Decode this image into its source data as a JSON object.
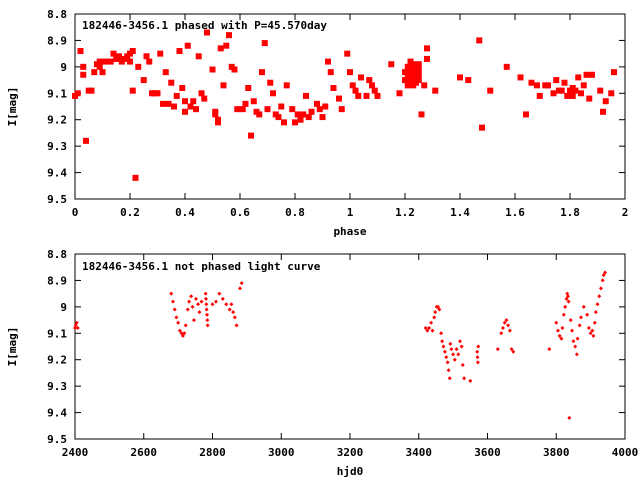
{
  "chart_data": [
    {
      "type": "scatter",
      "title": "182446-3456.1 phased with P=45.570day",
      "xlabel": "phase",
      "ylabel": "I[mag]",
      "xlim": [
        0,
        2
      ],
      "ylim": [
        9.5,
        8.8
      ],
      "y_inverted": true,
      "grid": false,
      "marker_color": "#ff0000",
      "xticks": [
        "0",
        "0.2",
        "0.4",
        "0.6",
        "0.8",
        "1",
        "1.2",
        "1.4",
        "1.6",
        "1.8",
        "2"
      ],
      "yticks": [
        "8.8",
        "8.9",
        "9",
        "9.1",
        "9.2",
        "9.3",
        "9.4",
        "9.5"
      ],
      "points": [
        [
          0.0,
          9.11
        ],
        [
          0.01,
          9.1
        ],
        [
          0.02,
          8.94
        ],
        [
          0.03,
          9.0
        ],
        [
          0.03,
          9.03
        ],
        [
          0.04,
          9.28
        ],
        [
          0.05,
          9.09
        ],
        [
          0.06,
          9.09
        ],
        [
          0.07,
          9.02
        ],
        [
          0.08,
          8.99
        ],
        [
          0.09,
          9.0
        ],
        [
          0.09,
          8.98
        ],
        [
          0.1,
          9.02
        ],
        [
          0.11,
          8.98
        ],
        [
          0.13,
          8.98
        ],
        [
          0.14,
          8.95
        ],
        [
          0.15,
          8.97
        ],
        [
          0.16,
          8.96
        ],
        [
          0.17,
          8.98
        ],
        [
          0.18,
          8.97
        ],
        [
          0.19,
          8.96
        ],
        [
          0.2,
          8.95
        ],
        [
          0.2,
          8.98
        ],
        [
          0.21,
          8.94
        ],
        [
          0.21,
          9.09
        ],
        [
          0.22,
          9.42
        ],
        [
          0.23,
          9.0
        ],
        [
          0.25,
          9.05
        ],
        [
          0.26,
          8.96
        ],
        [
          0.27,
          8.98
        ],
        [
          0.28,
          9.1
        ],
        [
          0.29,
          9.1
        ],
        [
          0.3,
          9.1
        ],
        [
          0.31,
          8.95
        ],
        [
          0.32,
          9.14
        ],
        [
          0.33,
          9.02
        ],
        [
          0.34,
          9.14
        ],
        [
          0.35,
          9.06
        ],
        [
          0.36,
          9.15
        ],
        [
          0.37,
          9.11
        ],
        [
          0.38,
          8.94
        ],
        [
          0.39,
          9.08
        ],
        [
          0.4,
          9.17
        ],
        [
          0.4,
          9.13
        ],
        [
          0.41,
          8.92
        ],
        [
          0.42,
          9.15
        ],
        [
          0.43,
          9.13
        ],
        [
          0.44,
          9.16
        ],
        [
          0.45,
          8.96
        ],
        [
          0.46,
          9.1
        ],
        [
          0.47,
          9.12
        ],
        [
          0.48,
          8.87
        ],
        [
          0.5,
          9.01
        ],
        [
          0.51,
          9.17
        ],
        [
          0.51,
          9.18
        ],
        [
          0.52,
          9.2
        ],
        [
          0.52,
          9.21
        ],
        [
          0.53,
          8.93
        ],
        [
          0.54,
          9.07
        ],
        [
          0.55,
          8.92
        ],
        [
          0.56,
          8.88
        ],
        [
          0.57,
          9.0
        ],
        [
          0.58,
          9.01
        ],
        [
          0.59,
          9.16
        ],
        [
          0.61,
          9.16
        ],
        [
          0.62,
          9.14
        ],
        [
          0.63,
          9.08
        ],
        [
          0.64,
          9.26
        ],
        [
          0.65,
          9.13
        ],
        [
          0.66,
          9.17
        ],
        [
          0.67,
          9.18
        ],
        [
          0.68,
          9.02
        ],
        [
          0.69,
          8.91
        ],
        [
          0.7,
          9.16
        ],
        [
          0.71,
          9.06
        ],
        [
          0.72,
          9.1
        ],
        [
          0.73,
          9.18
        ],
        [
          0.74,
          9.19
        ],
        [
          0.75,
          9.15
        ],
        [
          0.76,
          9.21
        ],
        [
          0.77,
          9.07
        ],
        [
          0.79,
          9.16
        ],
        [
          0.8,
          9.21
        ],
        [
          0.81,
          9.18
        ],
        [
          0.82,
          9.2
        ],
        [
          0.83,
          9.18
        ],
        [
          0.84,
          9.11
        ],
        [
          0.85,
          9.19
        ],
        [
          0.86,
          9.17
        ],
        [
          0.88,
          9.14
        ],
        [
          0.89,
          9.16
        ],
        [
          0.9,
          9.19
        ],
        [
          0.91,
          9.15
        ],
        [
          0.92,
          8.98
        ],
        [
          0.93,
          9.02
        ],
        [
          0.94,
          9.08
        ],
        [
          0.96,
          9.12
        ],
        [
          0.97,
          9.16
        ],
        [
          0.99,
          8.95
        ],
        [
          1.0,
          9.02
        ],
        [
          1.01,
          9.07
        ],
        [
          1.02,
          9.09
        ],
        [
          1.03,
          9.11
        ],
        [
          1.04,
          9.04
        ],
        [
          1.06,
          9.11
        ],
        [
          1.07,
          9.05
        ],
        [
          1.08,
          9.07
        ],
        [
          1.09,
          9.09
        ],
        [
          1.1,
          9.11
        ],
        [
          1.15,
          8.99
        ],
        [
          1.18,
          9.1
        ],
        [
          1.2,
          9.02
        ],
        [
          1.2,
          9.05
        ],
        [
          1.21,
          9.0
        ],
        [
          1.21,
          9.03
        ],
        [
          1.21,
          9.05
        ],
        [
          1.21,
          9.07
        ],
        [
          1.22,
          8.98
        ],
        [
          1.22,
          9.0
        ],
        [
          1.22,
          9.02
        ],
        [
          1.22,
          9.04
        ],
        [
          1.22,
          9.06
        ],
        [
          1.23,
          8.99
        ],
        [
          1.23,
          9.01
        ],
        [
          1.23,
          9.03
        ],
        [
          1.23,
          9.05
        ],
        [
          1.23,
          9.07
        ],
        [
          1.24,
          9.0
        ],
        [
          1.24,
          9.02
        ],
        [
          1.24,
          9.04
        ],
        [
          1.24,
          9.06
        ],
        [
          1.25,
          8.99
        ],
        [
          1.25,
          9.01
        ],
        [
          1.25,
          9.03
        ],
        [
          1.25,
          9.05
        ],
        [
          1.26,
          9.18
        ],
        [
          1.27,
          9.07
        ],
        [
          1.28,
          8.97
        ],
        [
          1.28,
          8.93
        ],
        [
          1.31,
          9.09
        ],
        [
          1.4,
          9.04
        ],
        [
          1.43,
          9.05
        ],
        [
          1.47,
          8.9
        ],
        [
          1.48,
          9.23
        ],
        [
          1.51,
          9.09
        ],
        [
          1.57,
          9.0
        ],
        [
          1.62,
          9.04
        ],
        [
          1.64,
          9.18
        ],
        [
          1.66,
          9.06
        ],
        [
          1.68,
          9.07
        ],
        [
          1.69,
          9.11
        ],
        [
          1.71,
          9.07
        ],
        [
          1.72,
          9.07
        ],
        [
          1.74,
          9.1
        ],
        [
          1.75,
          9.05
        ],
        [
          1.76,
          9.09
        ],
        [
          1.77,
          9.09
        ],
        [
          1.78,
          9.06
        ],
        [
          1.79,
          9.11
        ],
        [
          1.8,
          9.09
        ],
        [
          1.81,
          9.08
        ],
        [
          1.81,
          9.11
        ],
        [
          1.82,
          9.09
        ],
        [
          1.83,
          9.04
        ],
        [
          1.84,
          9.1
        ],
        [
          1.85,
          9.07
        ],
        [
          1.86,
          9.03
        ],
        [
          1.87,
          9.12
        ],
        [
          1.88,
          9.03
        ],
        [
          1.91,
          9.09
        ],
        [
          1.92,
          9.17
        ],
        [
          1.93,
          9.13
        ],
        [
          1.95,
          9.1
        ],
        [
          1.96,
          9.02
        ]
      ]
    },
    {
      "type": "scatter",
      "title": "182446-3456.1 not phased light curve",
      "xlabel": "hjd0",
      "ylabel": "I[mag]",
      "xlim": [
        2400,
        4000
      ],
      "ylim": [
        9.5,
        8.8
      ],
      "y_inverted": true,
      "grid": false,
      "marker_color": "#ff0000",
      "xticks": [
        "2400",
        "2600",
        "2800",
        "3000",
        "3200",
        "3400",
        "3600",
        "3800",
        "4000"
      ],
      "yticks": [
        "8.8",
        "8.9",
        "9",
        "9.1",
        "9.2",
        "9.3",
        "9.4",
        "9.5"
      ],
      "points": [
        [
          2400,
          9.08
        ],
        [
          2402,
          9.07
        ],
        [
          2405,
          9.06
        ],
        [
          2408,
          9.08
        ],
        [
          2680,
          8.95
        ],
        [
          2685,
          8.98
        ],
        [
          2690,
          9.01
        ],
        [
          2695,
          9.04
        ],
        [
          2700,
          9.06
        ],
        [
          2705,
          9.09
        ],
        [
          2710,
          9.1
        ],
        [
          2714,
          9.11
        ],
        [
          2718,
          9.1
        ],
        [
          2722,
          9.07
        ],
        [
          2728,
          9.01
        ],
        [
          2732,
          8.98
        ],
        [
          2738,
          8.96
        ],
        [
          2742,
          9.0
        ],
        [
          2746,
          9.05
        ],
        [
          2752,
          8.97
        ],
        [
          2758,
          8.99
        ],
        [
          2762,
          9.02
        ],
        [
          2768,
          8.98
        ],
        [
          2780,
          8.95
        ],
        [
          2781,
          8.97
        ],
        [
          2782,
          8.99
        ],
        [
          2783,
          9.01
        ],
        [
          2784,
          9.03
        ],
        [
          2785,
          9.05
        ],
        [
          2786,
          9.07
        ],
        [
          2800,
          8.99
        ],
        [
          2810,
          8.98
        ],
        [
          2820,
          8.95
        ],
        [
          2830,
          8.97
        ],
        [
          2840,
          8.99
        ],
        [
          2850,
          9.01
        ],
        [
          2855,
          8.99
        ],
        [
          2860,
          9.02
        ],
        [
          2865,
          9.04
        ],
        [
          2870,
          9.07
        ],
        [
          2880,
          8.93
        ],
        [
          2885,
          8.91
        ],
        [
          3420,
          9.08
        ],
        [
          3425,
          9.09
        ],
        [
          3430,
          9.08
        ],
        [
          3436,
          9.06
        ],
        [
          3440,
          9.09
        ],
        [
          3445,
          9.04
        ],
        [
          3448,
          9.02
        ],
        [
          3452,
          9.0
        ],
        [
          3456,
          9.0
        ],
        [
          3460,
          9.01
        ],
        [
          3465,
          9.1
        ],
        [
          3468,
          9.13
        ],
        [
          3472,
          9.15
        ],
        [
          3476,
          9.17
        ],
        [
          3480,
          9.19
        ],
        [
          3484,
          9.21
        ],
        [
          3487,
          9.24
        ],
        [
          3490,
          9.27
        ],
        [
          3492,
          9.14
        ],
        [
          3495,
          9.16
        ],
        [
          3500,
          9.18
        ],
        [
          3505,
          9.2
        ],
        [
          3510,
          9.16
        ],
        [
          3515,
          9.18
        ],
        [
          3520,
          9.13
        ],
        [
          3525,
          9.15
        ],
        [
          3528,
          9.22
        ],
        [
          3532,
          9.27
        ],
        [
          3550,
          9.28
        ],
        [
          3570,
          9.17
        ],
        [
          3571,
          9.19
        ],
        [
          3572,
          9.21
        ],
        [
          3573,
          9.15
        ],
        [
          3630,
          9.16
        ],
        [
          3640,
          9.1
        ],
        [
          3645,
          9.08
        ],
        [
          3650,
          9.06
        ],
        [
          3655,
          9.05
        ],
        [
          3660,
          9.07
        ],
        [
          3665,
          9.09
        ],
        [
          3670,
          9.16
        ],
        [
          3675,
          9.17
        ],
        [
          3780,
          9.16
        ],
        [
          3800,
          9.06
        ],
        [
          3805,
          9.09
        ],
        [
          3810,
          9.11
        ],
        [
          3815,
          9.12
        ],
        [
          3818,
          9.08
        ],
        [
          3822,
          9.03
        ],
        [
          3826,
          9.0
        ],
        [
          3830,
          8.97
        ],
        [
          3832,
          8.95
        ],
        [
          3834,
          8.96
        ],
        [
          3836,
          8.98
        ],
        [
          3838,
          9.42
        ],
        [
          3842,
          9.05
        ],
        [
          3846,
          9.09
        ],
        [
          3850,
          9.13
        ],
        [
          3855,
          9.15
        ],
        [
          3860,
          9.18
        ],
        [
          3862,
          9.12
        ],
        [
          3868,
          9.07
        ],
        [
          3872,
          9.04
        ],
        [
          3880,
          9.0
        ],
        [
          3890,
          9.03
        ],
        [
          3895,
          9.08
        ],
        [
          3900,
          9.1
        ],
        [
          3905,
          9.09
        ],
        [
          3908,
          9.11
        ],
        [
          3912,
          9.06
        ],
        [
          3915,
          9.02
        ],
        [
          3920,
          8.99
        ],
        [
          3925,
          8.96
        ],
        [
          3930,
          8.93
        ],
        [
          3935,
          8.9
        ],
        [
          3938,
          8.88
        ],
        [
          3942,
          8.87
        ]
      ]
    }
  ]
}
